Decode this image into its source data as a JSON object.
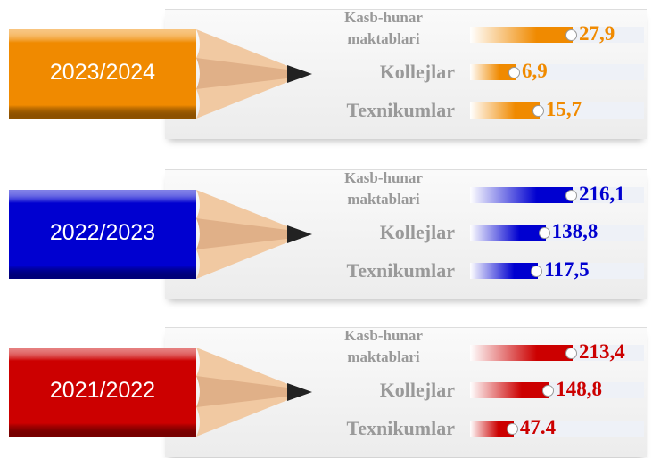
{
  "chart_data": [
    {
      "type": "bar",
      "title": "2023/2024",
      "categories": [
        "Kasb-hunar maktablari",
        "Kollejlar",
        "Texnikumlar"
      ],
      "values": [
        27.9,
        6.9,
        15.7
      ],
      "value_labels": [
        "27,9",
        "6,9",
        "15,7"
      ],
      "color": "#f08a00"
    },
    {
      "type": "bar",
      "title": "2022/2023",
      "categories": [
        "Kasb-hunar maktablari",
        "Kollejlar",
        "Texnikumlar"
      ],
      "values": [
        216.1,
        138.8,
        117.5
      ],
      "value_labels": [
        "216,1",
        "138,8",
        "117,5"
      ],
      "color": "#0000d0"
    },
    {
      "type": "bar",
      "title": "2021/2022",
      "categories": [
        "Kasb-hunar maktablari",
        "Kollejlar",
        "Texnikumlar"
      ],
      "values": [
        213.4,
        148.8,
        47.4
      ],
      "value_labels": [
        "213,4",
        "148,8",
        "47.4"
      ],
      "color": "#cc0000"
    }
  ]
}
